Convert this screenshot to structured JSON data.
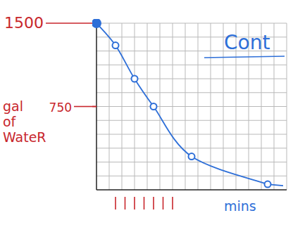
{
  "chart_data": {
    "type": "line",
    "x": [
      0,
      1,
      2,
      3,
      5,
      9
    ],
    "values": [
      1500,
      1300,
      1000,
      750,
      300,
      50
    ],
    "color": "#2e6fd8",
    "marker": "circle",
    "xlim": [
      0,
      10
    ],
    "ylim": [
      0,
      1500
    ],
    "xticks": [
      1,
      1.5,
      2,
      2.5,
      3,
      3.5,
      4
    ],
    "yticks": [
      750,
      1500
    ],
    "tick_labels": "y",
    "grid": true,
    "x_label": "mins",
    "y_label": "gal of WateR",
    "annotation": "Cont"
  }
}
